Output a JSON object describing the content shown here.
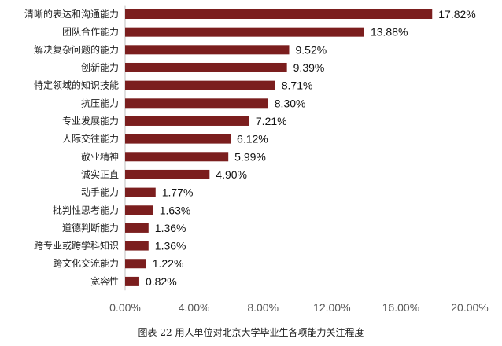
{
  "chart_data": {
    "type": "bar",
    "orientation": "horizontal",
    "categories": [
      "清晰的表达和沟通能力",
      "团队合作能力",
      "解决复杂问题的能力",
      "创新能力",
      "特定领域的知识技能",
      "抗压能力",
      "专业发展能力",
      "人际交往能力",
      "敬业精神",
      "诚实正直",
      "动手能力",
      "批判性思考能力",
      "道德判断能力",
      "跨专业或跨学科知识",
      "跨文化交流能力",
      "宽容性"
    ],
    "values": [
      17.82,
      13.88,
      9.52,
      9.39,
      8.71,
      8.3,
      7.21,
      6.12,
      5.99,
      4.9,
      1.77,
      1.63,
      1.36,
      1.36,
      1.22,
      0.82
    ],
    "value_labels": [
      "17.82%",
      "13.88%",
      "9.52%",
      "9.39%",
      "8.71%",
      "8.30%",
      "7.21%",
      "6.12%",
      "5.99%",
      "4.90%",
      "1.77%",
      "1.63%",
      "1.36%",
      "1.36%",
      "1.22%",
      "0.82%"
    ],
    "xlim": [
      0,
      20
    ],
    "x_ticks": [
      0,
      4,
      8,
      12,
      16,
      20
    ],
    "x_tick_labels": [
      "0.00%",
      "4.00%",
      "8.00%",
      "12.00%",
      "16.00%",
      "20.00%"
    ],
    "grid": false,
    "bar_color": "#7b1e1e",
    "caption": "图表 22 用人单位对北京大学毕业生各项能力关注程度"
  }
}
